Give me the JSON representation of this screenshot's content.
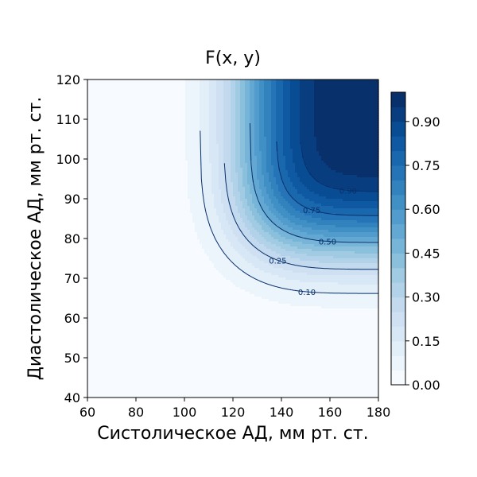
{
  "chart_data": {
    "type": "heatmap",
    "title": "F(x, y)",
    "xlabel": "Систолическое АД, мм рт. ст.",
    "ylabel": "Диастолическое АД, мм рт. ст.",
    "xlim": [
      60,
      180
    ],
    "ylim": [
      40,
      120
    ],
    "xticks": [
      "60",
      "80",
      "100",
      "120",
      "140",
      "160",
      "180"
    ],
    "yticks": [
      "40",
      "50",
      "60",
      "70",
      "80",
      "90",
      "100",
      "110",
      "120"
    ],
    "colorbar": {
      "min": 0,
      "max": 1,
      "ticks": [
        "0.00",
        "0.15",
        "0.30",
        "0.45",
        "0.60",
        "0.75",
        "0.90"
      ],
      "colormap": "Blues",
      "levels": 20
    },
    "contours": [
      {
        "level": 0.1,
        "label": "0.10"
      },
      {
        "level": 0.25,
        "label": "0.25"
      },
      {
        "level": 0.5,
        "label": "0.50"
      },
      {
        "level": 0.75,
        "label": "0.75"
      },
      {
        "level": 0.9,
        "label": "0.90"
      }
    ],
    "grid": false
  }
}
